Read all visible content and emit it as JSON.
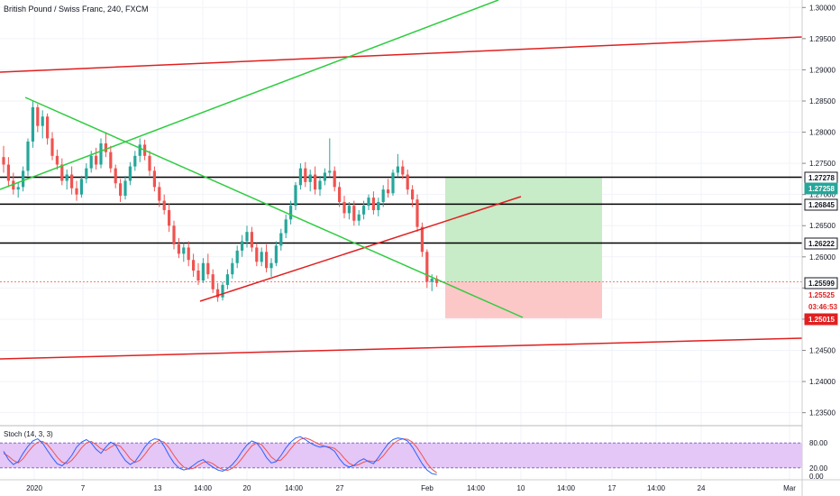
{
  "title": "British Pound / Swiss Franc, 240, FXCM",
  "colors": {
    "bull": "#26a69a",
    "bear": "#ef5350",
    "green_line": "#2ecc40",
    "red_line": "#e02020",
    "hline": "#000000",
    "profit_zone": "#c8ebc8",
    "loss_zone": "#fcc7c7",
    "stoch_band": "#e4c6f7",
    "stoch_k": "#2962ff",
    "stoch_d": "#ef5350",
    "stoch_border": "#7e57c2"
  },
  "chart_data": {
    "type": "candlestick",
    "price_axis": {
      "ticks": [
        "1.30000",
        "1.29500",
        "1.29000",
        "1.28500",
        "1.28000",
        "1.27500",
        "1.27000",
        "1.26500",
        "1.26000",
        "1.25500",
        "1.25000",
        "1.24500",
        "1.24000",
        "1.23500"
      ],
      "range": [
        1.2335,
        1.3012
      ]
    },
    "time_axis": {
      "ticks": [
        "2020",
        "7",
        "13",
        "14:00",
        "20",
        "14:00",
        "27",
        "Feb",
        "14:00",
        "10",
        "14:00",
        "17",
        "14:00",
        "24",
        "Mar"
      ]
    },
    "candles": [
      [
        1.276,
        1.2778,
        1.2735,
        1.2748
      ],
      [
        1.2748,
        1.276,
        1.2712,
        1.2722
      ],
      [
        1.2722,
        1.2735,
        1.27,
        1.2708
      ],
      [
        1.2708,
        1.272,
        1.2695,
        1.2712
      ],
      [
        1.2712,
        1.2745,
        1.2705,
        1.2738
      ],
      [
        1.2738,
        1.279,
        1.273,
        1.2785
      ],
      [
        1.2785,
        1.285,
        1.2775,
        1.284
      ],
      [
        1.284,
        1.2845,
        1.28,
        1.281
      ],
      [
        1.281,
        1.2835,
        1.279,
        1.2825
      ],
      [
        1.2825,
        1.283,
        1.278,
        1.279
      ],
      [
        1.279,
        1.28,
        1.2755,
        1.2762
      ],
      [
        1.2762,
        1.2772,
        1.274,
        1.2748
      ],
      [
        1.2748,
        1.2758,
        1.2715,
        1.2722
      ],
      [
        1.2722,
        1.274,
        1.2708,
        1.2732
      ],
      [
        1.2732,
        1.2745,
        1.27,
        1.271
      ],
      [
        1.271,
        1.2722,
        1.269,
        1.27
      ],
      [
        1.27,
        1.273,
        1.2695,
        1.2725
      ],
      [
        1.2725,
        1.275,
        1.2718,
        1.2742
      ],
      [
        1.2742,
        1.277,
        1.2735,
        1.2762
      ],
      [
        1.2762,
        1.2775,
        1.274,
        1.2748
      ],
      [
        1.2748,
        1.279,
        1.2742,
        1.2782
      ],
      [
        1.2782,
        1.28,
        1.276,
        1.2768
      ],
      [
        1.2768,
        1.2778,
        1.2735,
        1.2742
      ],
      [
        1.2742,
        1.2748,
        1.271,
        1.2718
      ],
      [
        1.2718,
        1.2725,
        1.2688,
        1.2698
      ],
      [
        1.2698,
        1.273,
        1.2692,
        1.2722
      ],
      [
        1.2722,
        1.2752,
        1.2715,
        1.2745
      ],
      [
        1.2745,
        1.277,
        1.2738,
        1.2762
      ],
      [
        1.2762,
        1.279,
        1.2752,
        1.278
      ],
      [
        1.278,
        1.2788,
        1.2755,
        1.2762
      ],
      [
        1.2762,
        1.277,
        1.273,
        1.2738
      ],
      [
        1.2738,
        1.2745,
        1.2705,
        1.2712
      ],
      [
        1.2712,
        1.272,
        1.268,
        1.269
      ],
      [
        1.269,
        1.27,
        1.2668,
        1.2675
      ],
      [
        1.2675,
        1.2685,
        1.264,
        1.265
      ],
      [
        1.265,
        1.2658,
        1.2612,
        1.262
      ],
      [
        1.262,
        1.263,
        1.2598,
        1.2605
      ],
      [
        1.2605,
        1.2622,
        1.2592,
        1.2615
      ],
      [
        1.2615,
        1.2625,
        1.2585,
        1.2595
      ],
      [
        1.2595,
        1.2605,
        1.2568,
        1.2578
      ],
      [
        1.2578,
        1.259,
        1.2555,
        1.2562
      ],
      [
        1.2562,
        1.2598,
        1.2558,
        1.259
      ],
      [
        1.259,
        1.2605,
        1.2565,
        1.2572
      ],
      [
        1.2572,
        1.258,
        1.2542,
        1.2548
      ],
      [
        1.2548,
        1.2558,
        1.2528,
        1.2535
      ],
      [
        1.2535,
        1.256,
        1.253,
        1.2555
      ],
      [
        1.2555,
        1.258,
        1.2548,
        1.2572
      ],
      [
        1.2572,
        1.2598,
        1.2565,
        1.259
      ],
      [
        1.259,
        1.2618,
        1.2582,
        1.261
      ],
      [
        1.261,
        1.2635,
        1.26,
        1.2625
      ],
      [
        1.2625,
        1.265,
        1.2615,
        1.264
      ],
      [
        1.264,
        1.2648,
        1.2608,
        1.2615
      ],
      [
        1.2615,
        1.2622,
        1.2585,
        1.2592
      ],
      [
        1.2592,
        1.2615,
        1.2585,
        1.2608
      ],
      [
        1.2608,
        1.262,
        1.2575,
        1.2582
      ],
      [
        1.2582,
        1.2598,
        1.2568,
        1.259
      ],
      [
        1.259,
        1.2625,
        1.2585,
        1.2618
      ],
      [
        1.2618,
        1.2645,
        1.261,
        1.2638
      ],
      [
        1.2638,
        1.2668,
        1.263,
        1.266
      ],
      [
        1.266,
        1.269,
        1.2652,
        1.2682
      ],
      [
        1.2682,
        1.272,
        1.2675,
        1.2715
      ],
      [
        1.2715,
        1.275,
        1.2708,
        1.2742
      ],
      [
        1.2742,
        1.2752,
        1.2712,
        1.272
      ],
      [
        1.272,
        1.274,
        1.2705,
        1.2732
      ],
      [
        1.2732,
        1.2745,
        1.27,
        1.2708
      ],
      [
        1.2708,
        1.273,
        1.2698,
        1.2722
      ],
      [
        1.2722,
        1.2742,
        1.2715,
        1.2735
      ],
      [
        1.2735,
        1.279,
        1.2728,
        1.2738
      ],
      [
        1.2738,
        1.2745,
        1.2705,
        1.2712
      ],
      [
        1.2712,
        1.272,
        1.268,
        1.2688
      ],
      [
        1.2688,
        1.2698,
        1.2662,
        1.267
      ],
      [
        1.267,
        1.2688,
        1.266,
        1.2682
      ],
      [
        1.2682,
        1.269,
        1.265,
        1.2658
      ],
      [
        1.2658,
        1.2675,
        1.265,
        1.2668
      ],
      [
        1.2668,
        1.269,
        1.266,
        1.2682
      ],
      [
        1.2682,
        1.27,
        1.2675,
        1.2695
      ],
      [
        1.2695,
        1.2705,
        1.2668,
        1.2675
      ],
      [
        1.2675,
        1.2695,
        1.2665,
        1.2688
      ],
      [
        1.2688,
        1.2715,
        1.268,
        1.2708
      ],
      [
        1.2708,
        1.2725,
        1.2695,
        1.2702
      ],
      [
        1.2702,
        1.274,
        1.2698,
        1.2735
      ],
      [
        1.2735,
        1.2765,
        1.2728,
        1.2745
      ],
      [
        1.2745,
        1.2755,
        1.2725,
        1.2732
      ],
      [
        1.2732,
        1.274,
        1.27,
        1.2708
      ],
      [
        1.2708,
        1.2715,
        1.268,
        1.2692
      ],
      [
        1.2692,
        1.27,
        1.264,
        1.2648
      ],
      [
        1.2648,
        1.2655,
        1.26,
        1.2608
      ],
      [
        1.2608,
        1.2612,
        1.255,
        1.256
      ],
      [
        1.256,
        1.2572,
        1.2545,
        1.2565
      ],
      [
        1.2565,
        1.257,
        1.2552,
        1.2558
      ]
    ],
    "hlines": [
      "1.27278",
      "1.26845",
      "1.26222"
    ],
    "price_labels": [
      {
        "text": "1.27278",
        "style": "outline"
      },
      {
        "text": "1.27258",
        "style": "green"
      },
      {
        "text": "1.26845",
        "style": "outline"
      },
      {
        "text": "1.26222",
        "style": "outline"
      },
      {
        "text": "1.25599",
        "style": "outline"
      },
      {
        "text": "1.25525",
        "style": "red-text"
      },
      {
        "text": "03:46:53",
        "style": "red-text"
      },
      {
        "text": "1.25015",
        "style": "red"
      }
    ],
    "position": {
      "entry": 1.25599,
      "target": 1.27278,
      "stop": 1.25015
    },
    "stochastic": {
      "label": "Stoch (14, 3, 3)",
      "ticks": [
        "80.00",
        "20.00",
        "0.00"
      ],
      "k": [
        60,
        40,
        28,
        35,
        55,
        72,
        85,
        90,
        80,
        62,
        45,
        30,
        25,
        35,
        50,
        70,
        82,
        88,
        80,
        65,
        55,
        70,
        82,
        75,
        55,
        38,
        28,
        35,
        52,
        70,
        84,
        90,
        88,
        72,
        50,
        32,
        20,
        15,
        18,
        26,
        35,
        40,
        30,
        22,
        15,
        12,
        18,
        28,
        42,
        60,
        75,
        85,
        80,
        65,
        45,
        32,
        35,
        50,
        68,
        82,
        92,
        95,
        88,
        80,
        74,
        70,
        72,
        68,
        60,
        42,
        28,
        22,
        26,
        36,
        42,
        35,
        30,
        45,
        62,
        78,
        88,
        92,
        90,
        85,
        70,
        50,
        30,
        15,
        6,
        4
      ],
      "d": [
        55,
        48,
        38,
        32,
        42,
        58,
        72,
        82,
        84,
        76,
        62,
        46,
        34,
        30,
        38,
        52,
        68,
        80,
        84,
        76,
        66,
        62,
        70,
        76,
        72,
        58,
        42,
        33,
        38,
        52,
        68,
        80,
        86,
        82,
        68,
        50,
        34,
        22,
        17,
        19,
        26,
        33,
        35,
        30,
        22,
        16,
        14,
        19,
        29,
        43,
        59,
        73,
        80,
        76,
        62,
        46,
        37,
        39,
        51,
        66,
        80,
        89,
        92,
        88,
        82,
        76,
        72,
        70,
        67,
        57,
        43,
        31,
        25,
        28,
        34,
        37,
        35,
        38,
        49,
        64,
        77,
        86,
        90,
        89,
        82,
        68,
        50,
        31,
        17,
        8
      ]
    }
  }
}
